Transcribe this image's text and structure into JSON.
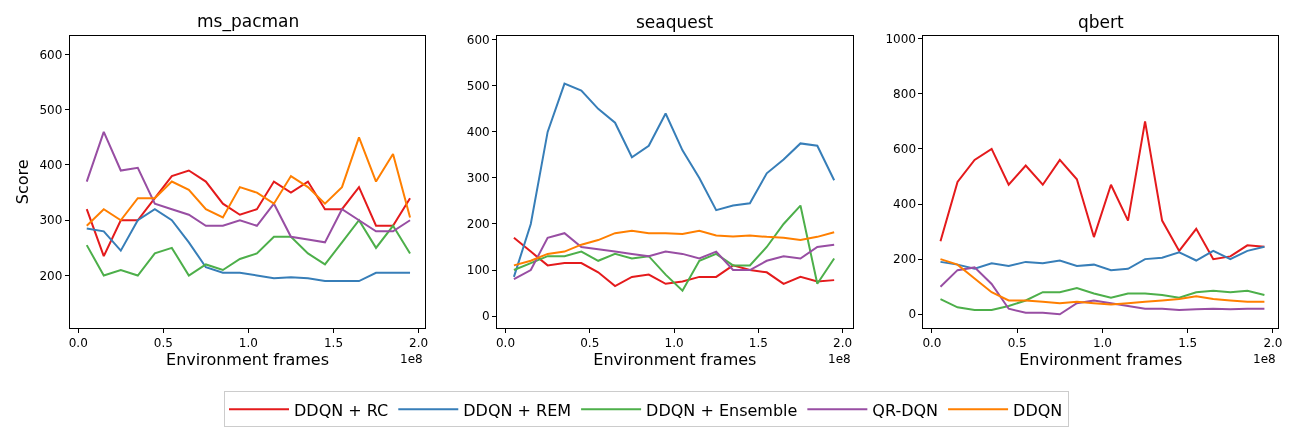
{
  "chart_data": [
    {
      "type": "line",
      "title": "ms_pacman",
      "xlabel": "Environment frames",
      "ylabel": "Score",
      "annotations": [
        "1e8"
      ],
      "xlim": [
        -0.05,
        2.04
      ],
      "xticks": [
        {
          "value": 0,
          "label": "0.0"
        },
        {
          "value": 0.5,
          "label": "0.5"
        },
        {
          "value": 1,
          "label": "1.0"
        },
        {
          "value": 1.5,
          "label": "1.5"
        },
        {
          "value": 2,
          "label": "2.0"
        }
      ],
      "ylim": [
        105,
        634
      ],
      "yticks": [
        200,
        300,
        400,
        500,
        600
      ],
      "legend": "bottom",
      "marker": "none",
      "line_style": "solid",
      "x": [
        0.05,
        0.15,
        0.25,
        0.35,
        0.45,
        0.55,
        0.65,
        0.75,
        0.85,
        0.95,
        1.05,
        1.15,
        1.25,
        1.35,
        1.45,
        1.55,
        1.65,
        1.75,
        1.85,
        1.95
      ],
      "series": [
        {
          "name": "DDQN + RC",
          "color": "#e41a1c",
          "values": [
            320,
            235,
            300,
            300,
            340,
            380,
            390,
            370,
            330,
            310,
            320,
            370,
            350,
            370,
            320,
            320,
            360,
            290,
            290,
            340
          ]
        },
        {
          "name": "DDQN + REM",
          "color": "#377eb8",
          "values": [
            285,
            280,
            245,
            300,
            320,
            300,
            260,
            215,
            205,
            205,
            200,
            195,
            197,
            195,
            190,
            190,
            190,
            205,
            205,
            205
          ]
        },
        {
          "name": "DDQN + Ensemble",
          "color": "#4daf4a",
          "values": [
            255,
            200,
            210,
            200,
            240,
            250,
            200,
            220,
            210,
            230,
            240,
            270,
            270,
            240,
            220,
            260,
            300,
            250,
            290,
            240
          ]
        },
        {
          "name": "QR-DQN",
          "color": "#984ea3",
          "values": [
            370,
            460,
            390,
            395,
            330,
            320,
            310,
            290,
            290,
            300,
            290,
            330,
            270,
            265,
            260,
            320,
            300,
            280,
            280,
            300
          ]
        },
        {
          "name": "DDQN",
          "color": "#ff7f00",
          "values": [
            290,
            320,
            300,
            340,
            340,
            370,
            355,
            320,
            305,
            360,
            350,
            330,
            380,
            360,
            330,
            360,
            450,
            370,
            420,
            305
          ]
        }
      ]
    },
    {
      "type": "line",
      "title": "seaquest",
      "xlabel": "Environment frames",
      "annotations": [
        "1e8"
      ],
      "xlim": [
        -0.05,
        2.06
      ],
      "xticks": [
        {
          "value": 0,
          "label": "0.0"
        },
        {
          "value": 0.5,
          "label": "0.5"
        },
        {
          "value": 1,
          "label": "1.0"
        },
        {
          "value": 1.5,
          "label": "1.5"
        },
        {
          "value": 2,
          "label": "2.0"
        }
      ],
      "ylim": [
        -26,
        609
      ],
      "yticks": [
        0,
        100,
        200,
        300,
        400,
        500,
        600
      ],
      "marker": "none",
      "line_style": "solid",
      "x": [
        0.05,
        0.15,
        0.25,
        0.35,
        0.45,
        0.55,
        0.65,
        0.75,
        0.85,
        0.95,
        1.05,
        1.15,
        1.25,
        1.35,
        1.45,
        1.55,
        1.65,
        1.75,
        1.85,
        1.95
      ],
      "series": [
        {
          "color": "#e41a1c",
          "values": [
            170,
            140,
            110,
            115,
            115,
            95,
            65,
            85,
            90,
            70,
            75,
            85,
            85,
            110,
            100,
            95,
            70,
            85,
            75,
            78
          ]
        },
        {
          "color": "#377eb8",
          "values": [
            85,
            200,
            400,
            505,
            490,
            450,
            420,
            345,
            370,
            440,
            360,
            300,
            230,
            240,
            245,
            310,
            340,
            375,
            370,
            295
          ]
        },
        {
          "color": "#4daf4a",
          "values": [
            100,
            115,
            130,
            130,
            140,
            120,
            135,
            125,
            130,
            90,
            55,
            120,
            135,
            110,
            110,
            150,
            200,
            240,
            70,
            125
          ]
        },
        {
          "color": "#984ea3",
          "values": [
            80,
            100,
            170,
            180,
            150,
            145,
            140,
            135,
            130,
            140,
            135,
            125,
            140,
            100,
            100,
            120,
            130,
            125,
            150,
            155
          ]
        },
        {
          "color": "#ff7f00",
          "values": [
            110,
            120,
            135,
            140,
            155,
            165,
            180,
            185,
            180,
            180,
            178,
            185,
            175,
            173,
            175,
            172,
            170,
            165,
            172,
            182
          ]
        }
      ]
    },
    {
      "type": "line",
      "title": "qbert",
      "xlabel": "Environment frames",
      "annotations": [
        "1e8"
      ],
      "xlim": [
        -0.05,
        2.03
      ],
      "xticks": [
        {
          "value": 0,
          "label": "0.0"
        },
        {
          "value": 0.5,
          "label": "0.5"
        },
        {
          "value": 1,
          "label": "1.0"
        },
        {
          "value": 1.5,
          "label": "1.5"
        },
        {
          "value": 2,
          "label": "2.0"
        }
      ],
      "ylim": [
        -50,
        1011
      ],
      "yticks": [
        0,
        200,
        400,
        600,
        800,
        1000
      ],
      "marker": "none",
      "line_style": "solid",
      "x": [
        0.05,
        0.15,
        0.25,
        0.35,
        0.45,
        0.55,
        0.65,
        0.75,
        0.85,
        0.95,
        1.05,
        1.15,
        1.25,
        1.35,
        1.45,
        1.55,
        1.65,
        1.75,
        1.85,
        1.95
      ],
      "series": [
        {
          "color": "#e41a1c",
          "values": [
            265,
            480,
            560,
            600,
            470,
            540,
            470,
            560,
            490,
            280,
            470,
            340,
            700,
            340,
            230,
            310,
            200,
            210,
            250,
            245
          ]
        },
        {
          "color": "#377eb8",
          "values": [
            190,
            180,
            165,
            185,
            175,
            190,
            185,
            195,
            175,
            180,
            160,
            165,
            200,
            205,
            225,
            195,
            230,
            200,
            230,
            245
          ]
        },
        {
          "color": "#4daf4a",
          "values": [
            55,
            25,
            15,
            15,
            30,
            50,
            80,
            80,
            95,
            75,
            60,
            75,
            75,
            70,
            60,
            80,
            85,
            80,
            85,
            70
          ]
        },
        {
          "color": "#984ea3",
          "values": [
            100,
            160,
            170,
            110,
            20,
            5,
            5,
            0,
            40,
            50,
            40,
            30,
            20,
            20,
            15,
            18,
            20,
            18,
            20,
            20
          ]
        },
        {
          "color": "#ff7f00",
          "values": [
            200,
            180,
            130,
            80,
            50,
            50,
            45,
            40,
            45,
            40,
            35,
            40,
            45,
            50,
            55,
            65,
            55,
            50,
            45,
            45
          ]
        }
      ]
    }
  ]
}
